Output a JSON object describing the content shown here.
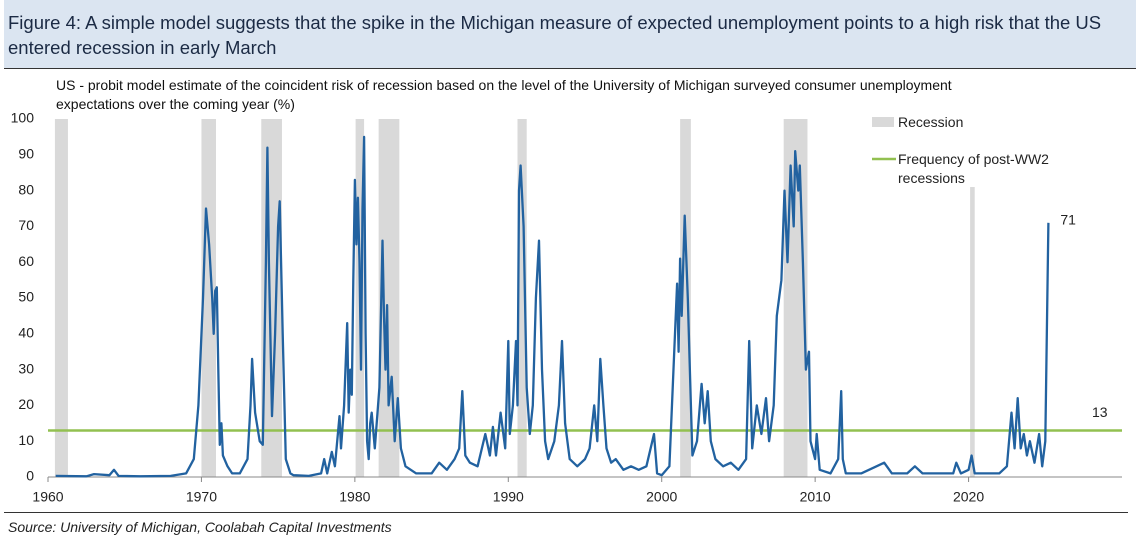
{
  "chart_data": {
    "type": "line",
    "title": "Figure 4: A simple model suggests that the spike in the Michigan measure of expected unemployment points to a high risk that the US entered recession in early March",
    "subtitle": "US - probit model estimate of the coincident risk of recession based on the level of the University of Michigan surveyed consumer unemployment expectations over the coming year (%)",
    "source": "Source: University of Michigan, Coolabah Capital Investments",
    "xlim": [
      1960,
      2030
    ],
    "xticks": [
      1960,
      1970,
      1980,
      1990,
      2000,
      2010,
      2020
    ],
    "ylim": [
      0,
      100
    ],
    "yticks": [
      0,
      10,
      20,
      30,
      40,
      50,
      60,
      70,
      80,
      90,
      100
    ],
    "recessions": {
      "name": "Recession",
      "color": "#d9d9d9",
      "spans": [
        [
          1960.45,
          1961.3,
          100
        ],
        [
          1970.0,
          1970.95,
          100
        ],
        [
          1973.9,
          1975.25,
          100
        ],
        [
          1980.05,
          1980.6,
          100
        ],
        [
          1981.55,
          1982.9,
          100
        ],
        [
          1990.6,
          1991.2,
          100
        ],
        [
          2001.2,
          2001.9,
          100
        ],
        [
          2007.95,
          2009.5,
          100
        ],
        [
          2020.1,
          2020.4,
          81
        ]
      ]
    },
    "reference_line": {
      "name": "Frequency of post-WW2 recessions",
      "value": 13,
      "color": "#92c050"
    },
    "series": [
      {
        "color": "#2262a0",
        "x": [
          1960.5,
          1962.5,
          1963,
          1964,
          1964.3,
          1964.6,
          1966,
          1968,
          1969,
          1969.5,
          1969.8,
          1970.1,
          1970.3,
          1970.5,
          1970.7,
          1970.8,
          1970.9,
          1971,
          1971.1,
          1971.2,
          1971.3,
          1971.4,
          1971.7,
          1972,
          1972.5,
          1973,
          1973.2,
          1973.3,
          1973.5,
          1973.8,
          1974,
          1974.2,
          1974.3,
          1974.4,
          1974.6,
          1974.8,
          1975,
          1975.1,
          1975.3,
          1975.5,
          1975.8,
          1976,
          1977,
          1977.8,
          1978,
          1978.2,
          1978.5,
          1978.7,
          1979,
          1979.1,
          1979.3,
          1979.5,
          1979.6,
          1979.7,
          1979.8,
          1979.9,
          1980,
          1980.1,
          1980.2,
          1980.3,
          1980.4,
          1980.5,
          1980.6,
          1980.7,
          1980.8,
          1980.9,
          1981,
          1981.1,
          1981.3,
          1981.6,
          1981.8,
          1981.9,
          1982,
          1982.1,
          1982.2,
          1982.4,
          1982.6,
          1982.8,
          1983,
          1983.3,
          1984,
          1985,
          1985.5,
          1986,
          1986.5,
          1986.8,
          1987,
          1987.2,
          1987.5,
          1988,
          1988.5,
          1988.8,
          1989,
          1989.2,
          1989.5,
          1989.8,
          1990,
          1990.1,
          1990.3,
          1990.5,
          1990.6,
          1990.7,
          1990.8,
          1991,
          1991.2,
          1991.4,
          1991.6,
          1991.8,
          1992,
          1992.2,
          1992.4,
          1992.6,
          1993,
          1993.3,
          1993.5,
          1993.7,
          1994,
          1994.5,
          1995,
          1995.3,
          1995.6,
          1995.8,
          1996,
          1996.2,
          1996.4,
          1996.7,
          1997,
          1997.5,
          1998,
          1998.5,
          1999,
          1999.5,
          1999.7,
          2000,
          2000.5,
          2001,
          2001.1,
          2001.2,
          2001.3,
          2001.5,
          2001.7,
          2001.9,
          2002,
          2002.3,
          2002.6,
          2002.8,
          2003,
          2003.2,
          2003.5,
          2004,
          2004.5,
          2005,
          2005.5,
          2005.7,
          2005.9,
          2006.2,
          2006.5,
          2006.8,
          2007,
          2007.3,
          2007.5,
          2007.8,
          2008,
          2008.2,
          2008.4,
          2008.6,
          2008.7,
          2008.9,
          2009,
          2009.2,
          2009.4,
          2009.6,
          2009.7,
          2010,
          2010.1,
          2010.3,
          2011,
          2011.5,
          2011.7,
          2011.8,
          2012,
          2013,
          2014,
          2014.5,
          2015,
          2016,
          2016.5,
          2017,
          2018,
          2019,
          2019.2,
          2019.5,
          2020,
          2020.2,
          2020.4,
          2021,
          2022,
          2022.5,
          2022.8,
          2023,
          2023.2,
          2023.4,
          2023.6,
          2023.8,
          2024,
          2024.3,
          2024.6,
          2024.8,
          2025,
          2025.2
        ],
        "values": [
          0.3,
          0.2,
          0.8,
          0.5,
          2,
          0.3,
          0.2,
          0.3,
          1,
          5,
          20,
          50,
          75,
          65,
          50,
          40,
          52,
          53,
          30,
          9,
          15,
          6,
          3,
          1,
          1,
          5,
          20,
          33,
          18,
          10,
          9,
          60,
          92,
          60,
          17,
          40,
          70,
          77,
          40,
          5,
          1,
          0.5,
          0.3,
          1,
          5,
          1,
          7,
          3,
          17,
          8,
          20,
          43,
          18,
          30,
          23,
          55,
          83,
          65,
          78,
          60,
          30,
          75,
          95,
          40,
          10,
          5,
          15,
          18,
          8,
          25,
          66,
          45,
          30,
          48,
          20,
          28,
          10,
          22,
          8,
          3,
          1,
          1,
          4,
          2,
          5,
          8,
          24,
          6,
          4,
          3,
          12,
          6,
          14,
          6,
          18,
          8,
          38,
          12,
          20,
          38,
          20,
          80,
          87,
          70,
          25,
          12,
          20,
          50,
          66,
          30,
          10,
          5,
          10,
          20,
          38,
          15,
          5,
          3,
          5,
          8,
          20,
          10,
          33,
          20,
          8,
          4,
          5,
          2,
          3,
          2,
          3,
          12,
          1,
          0.5,
          3,
          54,
          35,
          61,
          45,
          73,
          50,
          20,
          6,
          10,
          26,
          15,
          24,
          10,
          5,
          3,
          4,
          2,
          5,
          38,
          8,
          20,
          12,
          22,
          10,
          20,
          45,
          55,
          80,
          60,
          87,
          70,
          91,
          80,
          87,
          60,
          30,
          35,
          10,
          5,
          12,
          2,
          1,
          5,
          24,
          5,
          1,
          1,
          3,
          4,
          1,
          1,
          3,
          1,
          1,
          1,
          4,
          1,
          2,
          6,
          1,
          1,
          1,
          3,
          18,
          8,
          22,
          8,
          12,
          6,
          10,
          4,
          12,
          3,
          10,
          71
        ]
      }
    ]
  }
}
